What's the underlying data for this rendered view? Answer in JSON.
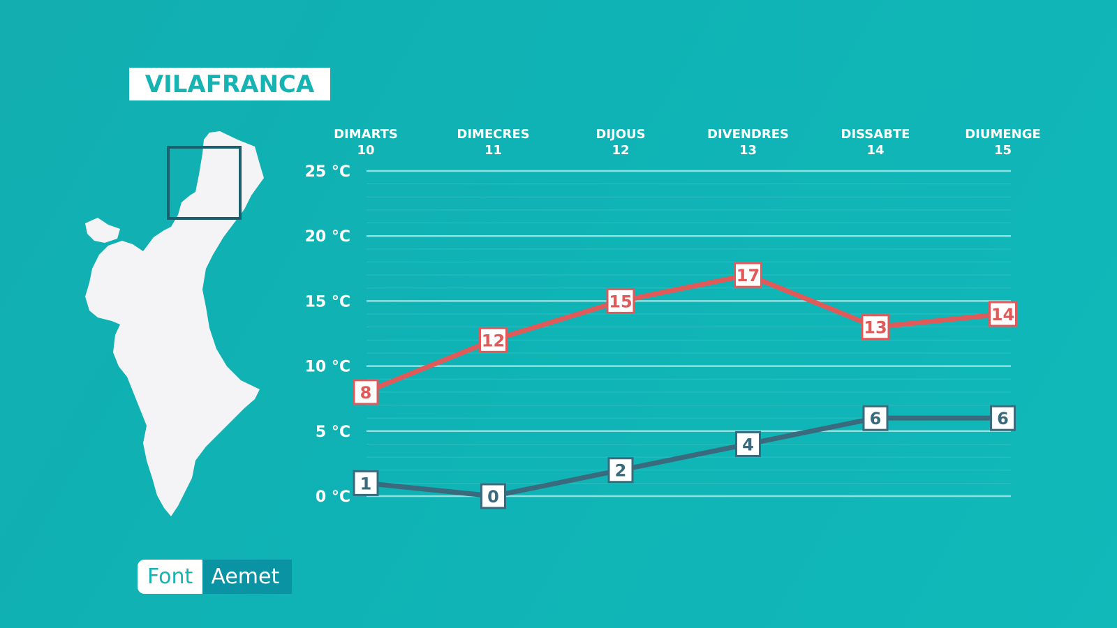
{
  "title": "VILAFRANCA",
  "source": {
    "label": "Font",
    "value": "Aemet"
  },
  "colors": {
    "background": "#12b0b2",
    "max_series": "#e05a5a",
    "min_series": "#3a6a7d",
    "grid": "#9ee6e4",
    "map_fill": "#f4f3f5",
    "map_box": "#1a5f6e"
  },
  "chart_data": {
    "type": "line",
    "categories": [
      {
        "day": "DIMARTS",
        "date": "10"
      },
      {
        "day": "DIMECRES",
        "date": "11"
      },
      {
        "day": "DIJOUS",
        "date": "12"
      },
      {
        "day": "DIVENDRES",
        "date": "13"
      },
      {
        "day": "DISSABTE",
        "date": "14"
      },
      {
        "day": "DIUMENGE",
        "date": "15"
      }
    ],
    "series": [
      {
        "key": "max",
        "values": [
          8,
          12,
          15,
          17,
          13,
          14
        ]
      },
      {
        "key": "min",
        "values": [
          1,
          0,
          2,
          4,
          6,
          6
        ]
      }
    ],
    "y_ticks": [
      {
        "value": 25,
        "label": "25 °C"
      },
      {
        "value": 20,
        "label": "20 °C"
      },
      {
        "value": 15,
        "label": "15 °C"
      },
      {
        "value": 10,
        "label": "10 °C"
      },
      {
        "value": 5,
        "label": "5 °C"
      },
      {
        "value": 0,
        "label": "0 °C"
      }
    ],
    "ylim": [
      0,
      25
    ],
    "grid": true
  }
}
